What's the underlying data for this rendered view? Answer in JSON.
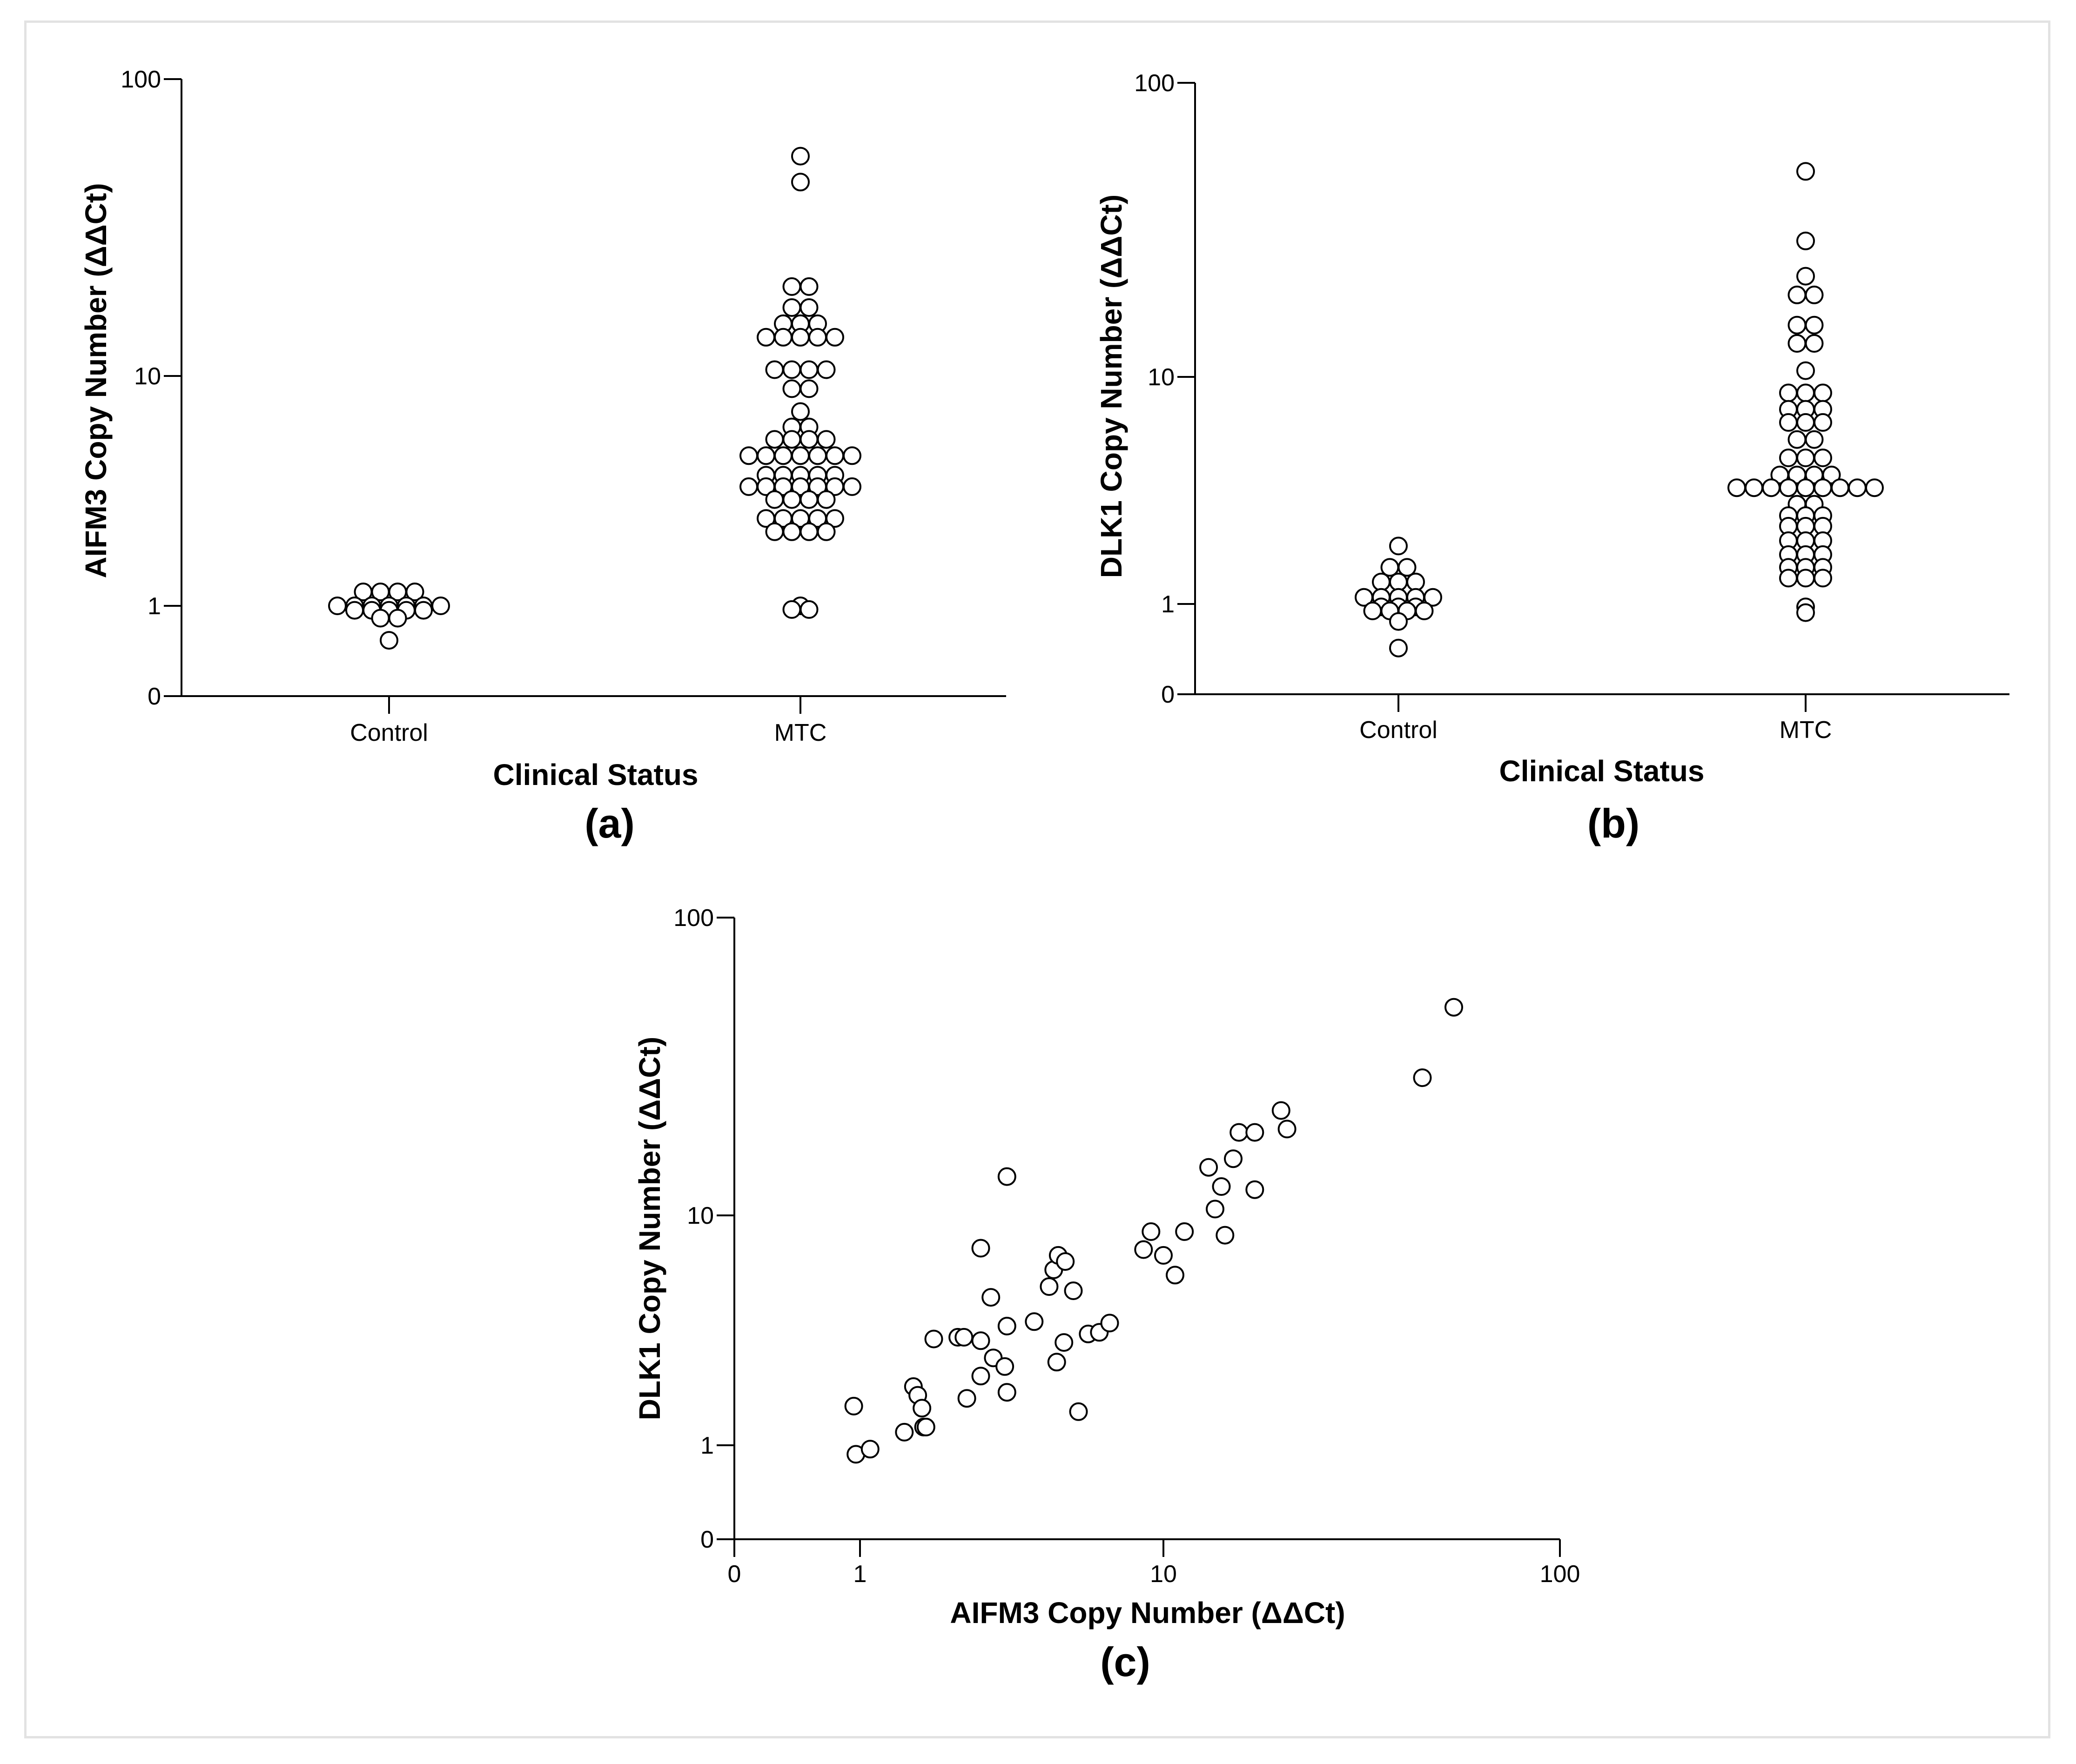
{
  "panels": [
    {
      "panel_label": "(a)",
      "x_title": "Clinical Status",
      "y_title": "AIFM3 Copy Number (ΔΔCt)",
      "y_ticks": [
        "100",
        "10",
        "1",
        "0"
      ],
      "categories": [
        "Control",
        "MTC"
      ]
    },
    {
      "panel_label": "(b)",
      "x_title": "Clinical Status",
      "y_title": "DLK1 Copy Number (ΔΔCt)",
      "y_ticks": [
        "100",
        "10",
        "1",
        "0"
      ],
      "categories": [
        "Control",
        "MTC"
      ]
    },
    {
      "panel_label": "(c)",
      "x_title": "AIFM3 Copy Number (ΔΔCt)",
      "y_title": "DLK1 Copy Number (ΔΔCt)",
      "x_ticks": [
        "0",
        "1",
        "10",
        "100"
      ],
      "y_ticks": [
        "100",
        "10",
        "1",
        "0"
      ]
    }
  ],
  "chart_data": [
    {
      "type": "scatter",
      "subtype": "dot-plot",
      "title": "(a)",
      "xlabel": "Clinical Status",
      "ylabel": "AIFM3 Copy Number (ΔΔCt)",
      "yscale": "log-with-zero",
      "ylim": [
        0,
        100
      ],
      "categories": [
        "Control",
        "MTC"
      ],
      "series": [
        {
          "name": "Control",
          "values": [
            1.15,
            1.15,
            1.15,
            1.15,
            1.0,
            1.0,
            1.0,
            1.0,
            1.0,
            1.0,
            1.0,
            0.88,
            0.88,
            0.88,
            0.88,
            0.88,
            0.7,
            0.7,
            0.35
          ]
        },
        {
          "name": "MTC",
          "values": [
            55,
            45,
            20,
            20,
            17,
            17,
            15,
            15,
            15,
            13.5,
            13.5,
            13.5,
            13.5,
            13.5,
            10.5,
            10.5,
            10.5,
            10.5,
            8.8,
            8.8,
            7,
            6,
            6,
            5.3,
            5.3,
            5.3,
            5.3,
            4.5,
            4.5,
            4.5,
            4.5,
            4.5,
            4.5,
            4.5,
            3.7,
            3.7,
            3.7,
            3.7,
            3.7,
            3.3,
            3.3,
            3.3,
            3.3,
            3.3,
            3.3,
            3.3,
            2.9,
            2.9,
            2.9,
            2.9,
            2.4,
            2.4,
            2.4,
            2.4,
            2.4,
            2.1,
            2.1,
            2.1,
            2.1,
            1.0,
            0.9,
            0.9
          ]
        }
      ]
    },
    {
      "type": "scatter",
      "subtype": "dot-plot",
      "title": "(b)",
      "xlabel": "Clinical Status",
      "ylabel": "DLK1 Copy Number (ΔΔCt)",
      "yscale": "log-with-zero",
      "ylim": [
        0,
        100
      ],
      "categories": [
        "Control",
        "MTC"
      ],
      "series": [
        {
          "name": "Control",
          "values": [
            1.8,
            1.45,
            1.45,
            1.25,
            1.25,
            1.25,
            1.07,
            1.07,
            1.07,
            1.07,
            1.07,
            0.92,
            0.92,
            0.92,
            0.82,
            0.82,
            0.82,
            0.82,
            0.6,
            0.25
          ]
        },
        {
          "name": "MTC",
          "values": [
            50,
            29,
            22,
            19,
            19,
            15,
            15,
            13,
            13,
            10.5,
            8.5,
            8.5,
            8.5,
            7.2,
            7.2,
            7.2,
            6.3,
            6.3,
            6.3,
            5.3,
            5.3,
            4.4,
            4.4,
            4.4,
            3.7,
            3.7,
            3.7,
            3.7,
            3.25,
            3.25,
            3.25,
            3.25,
            3.25,
            3.25,
            3.25,
            3.25,
            3.25,
            2.75,
            2.75,
            2.45,
            2.45,
            2.45,
            2.2,
            2.2,
            2.2,
            1.9,
            1.9,
            1.9,
            1.65,
            1.65,
            1.65,
            1.45,
            1.45,
            1.45,
            1.3,
            1.3,
            1.3,
            0.92,
            0.78
          ]
        }
      ]
    },
    {
      "type": "scatter",
      "title": "(c)",
      "xlabel": "AIFM3 Copy Number (ΔΔCt)",
      "ylabel": "DLK1 Copy Number (ΔΔCt)",
      "xscale": "log-with-zero",
      "yscale": "log-with-zero",
      "xlim": [
        0,
        100
      ],
      "ylim": [
        0,
        100
      ],
      "points": [
        [
          0.88,
          1.48
        ],
        [
          0.92,
          0.78
        ],
        [
          1.08,
          0.9
        ],
        [
          1.4,
          1.14
        ],
        [
          1.5,
          1.8
        ],
        [
          1.55,
          1.65
        ],
        [
          1.6,
          1.45
        ],
        [
          1.62,
          1.2
        ],
        [
          1.65,
          1.2
        ],
        [
          1.75,
          2.9
        ],
        [
          2.1,
          2.95
        ],
        [
          2.2,
          2.95
        ],
        [
          2.25,
          1.6
        ],
        [
          2.5,
          7.2
        ],
        [
          2.5,
          2.0
        ],
        [
          2.5,
          2.85
        ],
        [
          2.7,
          4.4
        ],
        [
          2.75,
          2.4
        ],
        [
          3.0,
          2.2
        ],
        [
          3.05,
          1.7
        ],
        [
          3.05,
          3.3
        ],
        [
          3.05,
          13.5
        ],
        [
          3.75,
          3.45
        ],
        [
          4.2,
          4.9
        ],
        [
          4.35,
          5.8
        ],
        [
          4.45,
          2.3
        ],
        [
          4.5,
          6.7
        ],
        [
          4.7,
          2.8
        ],
        [
          4.75,
          6.3
        ],
        [
          5.05,
          4.7
        ],
        [
          5.25,
          1.4
        ],
        [
          5.65,
          3.05
        ],
        [
          6.15,
          3.1
        ],
        [
          6.65,
          3.4
        ],
        [
          8.6,
          7.1
        ],
        [
          9.1,
          8.5
        ],
        [
          10.0,
          6.7
        ],
        [
          10.7,
          5.5
        ],
        [
          11.3,
          8.5
        ],
        [
          13.0,
          14.5
        ],
        [
          13.5,
          10.5
        ],
        [
          14.0,
          12.5
        ],
        [
          14.3,
          8.2
        ],
        [
          15.0,
          15.5
        ],
        [
          15.5,
          19.0
        ],
        [
          17.0,
          19.0
        ],
        [
          17.0,
          12.2
        ],
        [
          19.8,
          22.5
        ],
        [
          20.5,
          19.5
        ],
        [
          45.0,
          29.0
        ],
        [
          54.0,
          50.0
        ]
      ]
    }
  ]
}
